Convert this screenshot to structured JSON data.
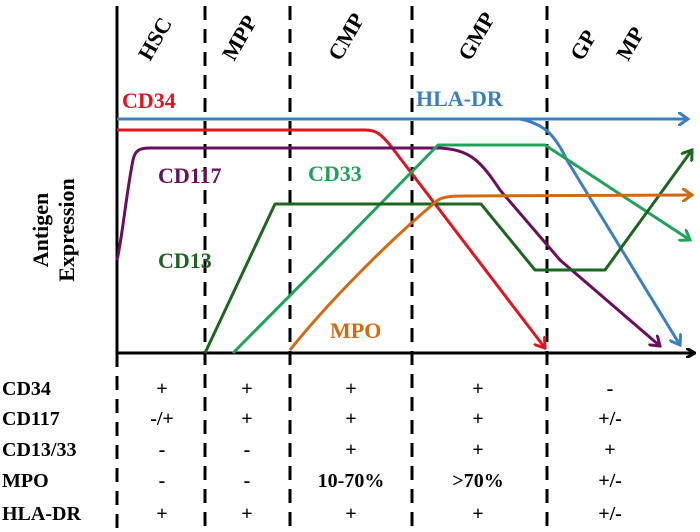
{
  "stages": [
    "HSC",
    "MPP",
    "CMP",
    "GMP",
    "GP",
    "MP"
  ],
  "axis": {
    "y_title_line1": "Antigen",
    "y_title_line2": "Expression"
  },
  "curves": [
    {
      "key": "cd34",
      "label": "CD34",
      "color": "#e0151f"
    },
    {
      "key": "hladr",
      "label": "HLA-DR",
      "color": "#3a7fc4"
    },
    {
      "key": "cd117",
      "label": "CD117",
      "color": "#6a0f5e"
    },
    {
      "key": "cd33",
      "label": "CD33",
      "color": "#1fa35a"
    },
    {
      "key": "cd13",
      "label": "CD13",
      "color": "#1d6520"
    },
    {
      "key": "mpo",
      "label": "MPO",
      "color": "#d26a12"
    }
  ],
  "table": {
    "rows": [
      {
        "label": "CD34",
        "cells": [
          "+",
          "+",
          "+",
          "+",
          "-"
        ]
      },
      {
        "label": "CD117",
        "cells": [
          "-/+",
          "+",
          "+",
          "+",
          "+/-"
        ]
      },
      {
        "label": "CD13/33",
        "cells": [
          "-",
          "-",
          "+",
          "+",
          "+"
        ]
      },
      {
        "label": "MPO",
        "cells": [
          "-",
          "-",
          "10-70%",
          ">70%",
          "+/-"
        ]
      },
      {
        "label": "HLA-DR",
        "cells": [
          "+",
          "+",
          "+",
          "+",
          "+/-"
        ]
      }
    ]
  }
}
